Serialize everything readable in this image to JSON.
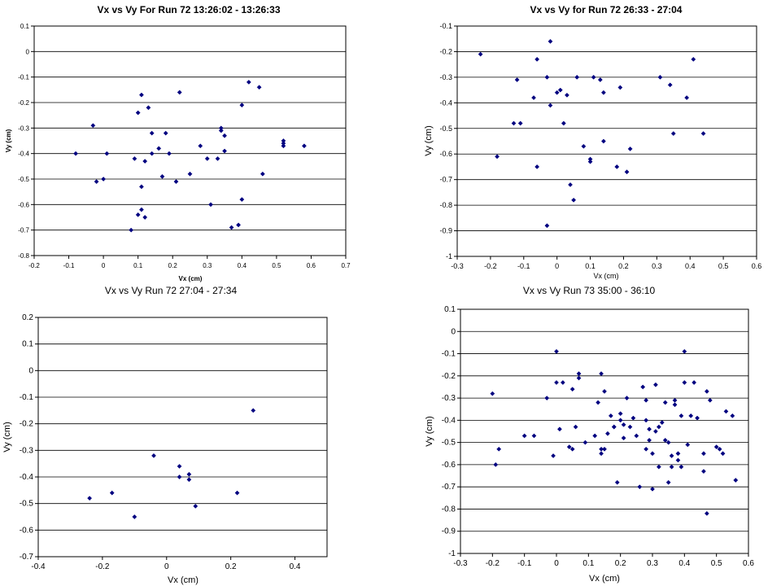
{
  "chart_data": [
    {
      "type": "scatter",
      "title": "Vx vs Vy For Run 72 13:26:02 - 13:26:33",
      "xlabel": "Vx (cm)",
      "ylabel": "Vy (cm)",
      "xlim": [
        -0.2,
        0.7
      ],
      "xstep": 0.1,
      "ylim": [
        -0.8,
        0.1
      ],
      "ystep": 0.1,
      "grid": "horizontal",
      "legend": "none",
      "marker_color": "#000080",
      "points": [
        [
          -0.08,
          -0.4
        ],
        [
          -0.03,
          -0.29
        ],
        [
          -0.02,
          -0.51
        ],
        [
          0.0,
          -0.5
        ],
        [
          0.01,
          -0.4
        ],
        [
          0.08,
          -0.7
        ],
        [
          0.09,
          -0.42
        ],
        [
          0.1,
          -0.64
        ],
        [
          0.1,
          -0.24
        ],
        [
          0.11,
          -0.17
        ],
        [
          0.11,
          -0.53
        ],
        [
          0.11,
          -0.62
        ],
        [
          0.12,
          -0.65
        ],
        [
          0.12,
          -0.43
        ],
        [
          0.13,
          -0.22
        ],
        [
          0.14,
          -0.32
        ],
        [
          0.14,
          -0.4
        ],
        [
          0.16,
          -0.38
        ],
        [
          0.17,
          -0.49
        ],
        [
          0.18,
          -0.32
        ],
        [
          0.19,
          -0.4
        ],
        [
          0.21,
          -0.51
        ],
        [
          0.22,
          -0.16
        ],
        [
          0.25,
          -0.48
        ],
        [
          0.28,
          -0.37
        ],
        [
          0.3,
          -0.42
        ],
        [
          0.31,
          -0.6
        ],
        [
          0.33,
          -0.42
        ],
        [
          0.34,
          -0.3
        ],
        [
          0.34,
          -0.31
        ],
        [
          0.35,
          -0.39
        ],
        [
          0.35,
          -0.33
        ],
        [
          0.37,
          -0.69
        ],
        [
          0.39,
          -0.68
        ],
        [
          0.4,
          -0.58
        ],
        [
          0.4,
          -0.21
        ],
        [
          0.42,
          -0.12
        ],
        [
          0.45,
          -0.14
        ],
        [
          0.46,
          -0.48
        ],
        [
          0.52,
          -0.35
        ],
        [
          0.52,
          -0.36
        ],
        [
          0.52,
          -0.37
        ],
        [
          0.58,
          -0.37
        ]
      ]
    },
    {
      "type": "scatter",
      "title": "Vx vs Vy for Run 72 26:33 - 27:04",
      "xlabel": "Vx (cm)",
      "ylabel": "Vy (cm)",
      "xlim": [
        -0.3,
        0.6
      ],
      "xstep": 0.1,
      "ylim": [
        -1.0,
        -0.1
      ],
      "ystep": 0.1,
      "grid": "horizontal",
      "legend": "none",
      "marker_color": "#000080",
      "points": [
        [
          -0.23,
          -0.21
        ],
        [
          -0.18,
          -0.61
        ],
        [
          -0.13,
          -0.48
        ],
        [
          -0.12,
          -0.31
        ],
        [
          -0.11,
          -0.48
        ],
        [
          -0.07,
          -0.38
        ],
        [
          -0.06,
          -0.23
        ],
        [
          -0.06,
          -0.65
        ],
        [
          -0.03,
          -0.3
        ],
        [
          -0.03,
          -0.88
        ],
        [
          -0.02,
          -0.16
        ],
        [
          -0.02,
          -0.41
        ],
        [
          0.0,
          -0.36
        ],
        [
          0.01,
          -0.35
        ],
        [
          0.02,
          -0.48
        ],
        [
          0.03,
          -0.37
        ],
        [
          0.04,
          -0.72
        ],
        [
          0.05,
          -0.78
        ],
        [
          0.06,
          -0.3
        ],
        [
          0.08,
          -0.57
        ],
        [
          0.1,
          -0.63
        ],
        [
          0.1,
          -0.62
        ],
        [
          0.11,
          -0.3
        ],
        [
          0.13,
          -0.31
        ],
        [
          0.14,
          -0.36
        ],
        [
          0.14,
          -0.55
        ],
        [
          0.18,
          -0.65
        ],
        [
          0.19,
          -0.34
        ],
        [
          0.21,
          -0.67
        ],
        [
          0.22,
          -0.58
        ],
        [
          0.31,
          -0.3
        ],
        [
          0.34,
          -0.33
        ],
        [
          0.35,
          -0.52
        ],
        [
          0.39,
          -0.38
        ],
        [
          0.41,
          -0.23
        ],
        [
          0.44,
          -0.52
        ]
      ]
    },
    {
      "type": "scatter",
      "title": "Vx vs Vy Run 72 27:04 - 27:34",
      "xlabel": "Vx (cm)",
      "ylabel": "Vy (cm)",
      "xlim": [
        -0.4,
        0.5
      ],
      "xstep": 0.2,
      "xticks": [
        -0.4,
        -0.2,
        0,
        0.2,
        0.4
      ],
      "ylim": [
        -0.7,
        0.2
      ],
      "ystep": 0.1,
      "grid": "horizontal",
      "legend": "none",
      "marker_color": "#000080",
      "points": [
        [
          -0.24,
          -0.48
        ],
        [
          -0.17,
          -0.46
        ],
        [
          -0.1,
          -0.55
        ],
        [
          -0.04,
          -0.32
        ],
        [
          0.04,
          -0.4
        ],
        [
          0.04,
          -0.36
        ],
        [
          0.07,
          -0.39
        ],
        [
          0.07,
          -0.41
        ],
        [
          0.09,
          -0.51
        ],
        [
          0.22,
          -0.46
        ],
        [
          0.27,
          -0.15
        ]
      ]
    },
    {
      "type": "scatter",
      "title": "Vx vs Vy Run 73 35:00 - 36:10",
      "xlabel": "Vx (cm)",
      "ylabel": "Vy (cm)",
      "xlim": [
        -0.3,
        0.6
      ],
      "xstep": 0.1,
      "ylim": [
        -1.0,
        0.1
      ],
      "ystep": 0.1,
      "grid": "horizontal",
      "legend": "none",
      "marker_color": "#000080",
      "points": [
        [
          -0.2,
          -0.28
        ],
        [
          -0.19,
          -0.6
        ],
        [
          -0.18,
          -0.53
        ],
        [
          -0.1,
          -0.47
        ],
        [
          -0.07,
          -0.47
        ],
        [
          -0.03,
          -0.3
        ],
        [
          -0.01,
          -0.56
        ],
        [
          0.0,
          -0.09
        ],
        [
          0.0,
          -0.23
        ],
        [
          0.01,
          -0.44
        ],
        [
          0.02,
          -0.23
        ],
        [
          0.04,
          -0.52
        ],
        [
          0.05,
          -0.26
        ],
        [
          0.05,
          -0.53
        ],
        [
          0.06,
          -0.43
        ],
        [
          0.07,
          -0.19
        ],
        [
          0.07,
          -0.21
        ],
        [
          0.09,
          -0.5
        ],
        [
          0.12,
          -0.47
        ],
        [
          0.13,
          -0.32
        ],
        [
          0.14,
          -0.19
        ],
        [
          0.14,
          -0.53
        ],
        [
          0.14,
          -0.55
        ],
        [
          0.15,
          -0.27
        ],
        [
          0.15,
          -0.53
        ],
        [
          0.16,
          -0.46
        ],
        [
          0.17,
          -0.38
        ],
        [
          0.18,
          -0.43
        ],
        [
          0.18,
          -0.43
        ],
        [
          0.19,
          -0.68
        ],
        [
          0.2,
          -0.37
        ],
        [
          0.2,
          -0.4
        ],
        [
          0.21,
          -0.42
        ],
        [
          0.21,
          -0.48
        ],
        [
          0.22,
          -0.3
        ],
        [
          0.23,
          -0.43
        ],
        [
          0.24,
          -0.39
        ],
        [
          0.25,
          -0.47
        ],
        [
          0.26,
          -0.7
        ],
        [
          0.27,
          -0.25
        ],
        [
          0.28,
          -0.31
        ],
        [
          0.28,
          -0.4
        ],
        [
          0.28,
          -0.53
        ],
        [
          0.29,
          -0.49
        ],
        [
          0.29,
          -0.44
        ],
        [
          0.3,
          -0.55
        ],
        [
          0.3,
          -0.71
        ],
        [
          0.31,
          -0.45
        ],
        [
          0.31,
          -0.24
        ],
        [
          0.32,
          -0.43
        ],
        [
          0.32,
          -0.61
        ],
        [
          0.33,
          -0.41
        ],
        [
          0.34,
          -0.32
        ],
        [
          0.34,
          -0.49
        ],
        [
          0.35,
          -0.5
        ],
        [
          0.35,
          -0.68
        ],
        [
          0.36,
          -0.56
        ],
        [
          0.36,
          -0.61
        ],
        [
          0.37,
          -0.33
        ],
        [
          0.37,
          -0.31
        ],
        [
          0.38,
          -0.58
        ],
        [
          0.38,
          -0.55
        ],
        [
          0.39,
          -0.38
        ],
        [
          0.39,
          -0.61
        ],
        [
          0.4,
          -0.23
        ],
        [
          0.4,
          -0.09
        ],
        [
          0.41,
          -0.51
        ],
        [
          0.42,
          -0.38
        ],
        [
          0.43,
          -0.23
        ],
        [
          0.44,
          -0.39
        ],
        [
          0.46,
          -0.55
        ],
        [
          0.46,
          -0.63
        ],
        [
          0.47,
          -0.82
        ],
        [
          0.47,
          -0.27
        ],
        [
          0.48,
          -0.31
        ],
        [
          0.5,
          -0.52
        ],
        [
          0.51,
          -0.53
        ],
        [
          0.52,
          -0.55
        ],
        [
          0.53,
          -0.36
        ],
        [
          0.55,
          -0.38
        ],
        [
          0.56,
          -0.67
        ]
      ]
    }
  ]
}
